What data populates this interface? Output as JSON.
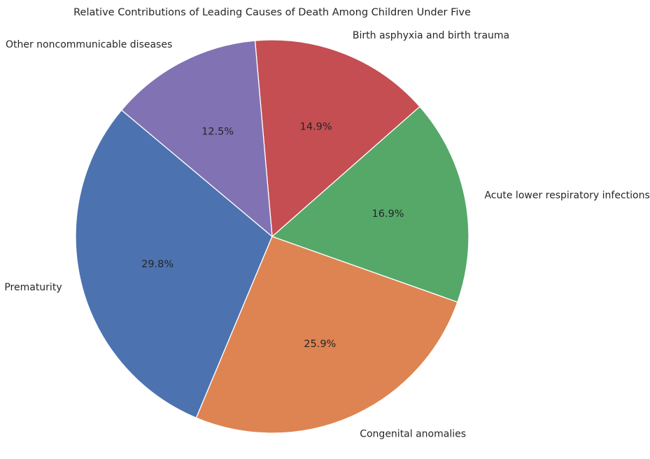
{
  "chart_data": {
    "type": "pie",
    "title": "Relative Contributions of Leading Causes of Death Among Children Under Five",
    "categories": [
      "Prematurity",
      "Congenital anomalies",
      "Acute lower respiratory infections",
      "Birth asphyxia and birth trauma",
      "Other noncommunicable diseases"
    ],
    "values": [
      29.8,
      25.9,
      16.9,
      14.9,
      12.5
    ],
    "value_labels": [
      "29.8%",
      "25.9%",
      "16.9%",
      "14.9%",
      "12.5%"
    ],
    "colors": [
      "#4c72b0",
      "#dd8452",
      "#55a868",
      "#c44e52",
      "#8172b3"
    ],
    "start_angle_deg": 140,
    "direction": "counterclockwise"
  }
}
